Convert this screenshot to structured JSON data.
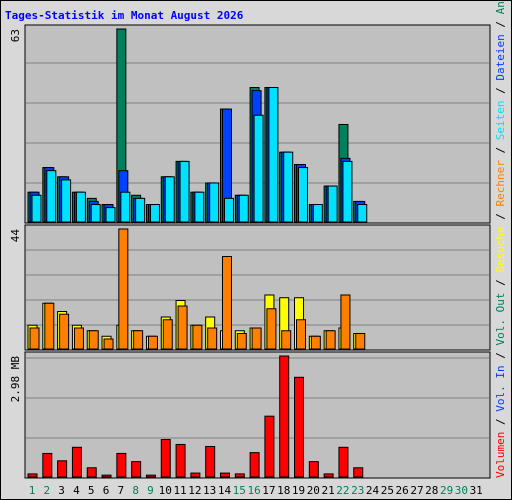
{
  "chart_data": [
    {
      "type": "bar",
      "title": "Tages-Statistik im Monat August 2026",
      "ylim": [
        0,
        63
      ],
      "yticks": [
        63
      ],
      "series": [
        {
          "name": "Anfragen",
          "color": "#00805c",
          "values": [
            10,
            18,
            15,
            10,
            8,
            6,
            63,
            9,
            6,
            15,
            20,
            10,
            13,
            37,
            9,
            44,
            44,
            23,
            19,
            6,
            12,
            32,
            7,
            0,
            0,
            0,
            0,
            0,
            0,
            0,
            0
          ]
        },
        {
          "name": "Dateien",
          "color": "#0040ff",
          "values": [
            10,
            18,
            15,
            10,
            7,
            6,
            17,
            8,
            6,
            15,
            20,
            10,
            13,
            37,
            9,
            43,
            44,
            23,
            19,
            6,
            12,
            21,
            7,
            0,
            0,
            0,
            0,
            0,
            0,
            0,
            0
          ]
        },
        {
          "name": "Seiten",
          "color": "#00e0ff",
          "values": [
            9,
            17,
            14,
            10,
            6,
            5,
            10,
            8,
            6,
            15,
            20,
            10,
            13,
            8,
            9,
            35,
            44,
            23,
            18,
            6,
            12,
            20,
            6,
            0,
            0,
            0,
            0,
            0,
            0,
            0,
            0
          ]
        }
      ]
    },
    {
      "type": "bar",
      "ylim": [
        0,
        44
      ],
      "yticks": [
        44
      ],
      "series": [
        {
          "name": "Besuche",
          "color": "#ffff00",
          "values": [
            9,
            17,
            14,
            9,
            7,
            5,
            9,
            7,
            5,
            12,
            18,
            9,
            12,
            7,
            7,
            8,
            20,
            19,
            19,
            5,
            7,
            8,
            6,
            0,
            0,
            0,
            0,
            0,
            0,
            0,
            0
          ]
        },
        {
          "name": "Rechner",
          "color": "#ff8000",
          "values": [
            8,
            17,
            13,
            8,
            7,
            4,
            44,
            7,
            5,
            11,
            16,
            9,
            8,
            34,
            6,
            8,
            15,
            7,
            11,
            5,
            7,
            20,
            6,
            0,
            0,
            0,
            0,
            0,
            0,
            0,
            0
          ]
        }
      ]
    },
    {
      "type": "bar",
      "ylim": [
        0,
        2.98
      ],
      "yticks": [
        {
          "value": 2.98,
          "label": "2.98 MB"
        }
      ],
      "categories": [
        "1",
        "2",
        "3",
        "4",
        "5",
        "6",
        "7",
        "8",
        "9",
        "10",
        "11",
        "12",
        "13",
        "14",
        "15",
        "16",
        "17",
        "18",
        "19",
        "20",
        "21",
        "22",
        "23",
        "24",
        "25",
        "26",
        "27",
        "28",
        "29",
        "30",
        "31"
      ],
      "category_colors": [
        "#00805c",
        "#00805c",
        "#000000",
        "#000000",
        "#000000",
        "#000000",
        "#000000",
        "#00805c",
        "#00805c",
        "#000000",
        "#000000",
        "#000000",
        "#000000",
        "#000000",
        "#00805c",
        "#00805c",
        "#000000",
        "#000000",
        "#000000",
        "#000000",
        "#000000",
        "#00805c",
        "#00805c",
        "#000000",
        "#000000",
        "#000000",
        "#000000",
        "#000000",
        "#00805c",
        "#00805c",
        "#000000"
      ],
      "series": [
        {
          "name": "Volumen",
          "color": "#ff0000",
          "values": [
            0.1,
            0.6,
            0.42,
            0.75,
            0.25,
            0.07,
            0.6,
            0.4,
            0.07,
            0.94,
            0.82,
            0.12,
            0.77,
            0.12,
            0.1,
            0.62,
            1.51,
            2.98,
            2.46,
            0.4,
            0.1,
            0.75,
            0.25,
            0,
            0,
            0,
            0,
            0,
            0,
            0,
            0
          ]
        },
        {
          "name": "Vol. In",
          "color": "#0040ff",
          "values": [
            null,
            null,
            null,
            null,
            null,
            null,
            null,
            null,
            null,
            null,
            null,
            null,
            null,
            null,
            null,
            null,
            null,
            null,
            null,
            null,
            null,
            null,
            null,
            null,
            null,
            null,
            null,
            null,
            null,
            null,
            null
          ]
        },
        {
          "name": "Vol. Out",
          "color": "#00805c",
          "values": [
            null,
            null,
            null,
            null,
            null,
            null,
            null,
            null,
            null,
            null,
            null,
            null,
            null,
            null,
            null,
            null,
            null,
            null,
            null,
            null,
            null,
            null,
            null,
            null,
            null,
            null,
            null,
            null,
            null,
            null,
            null
          ]
        }
      ]
    }
  ]
}
